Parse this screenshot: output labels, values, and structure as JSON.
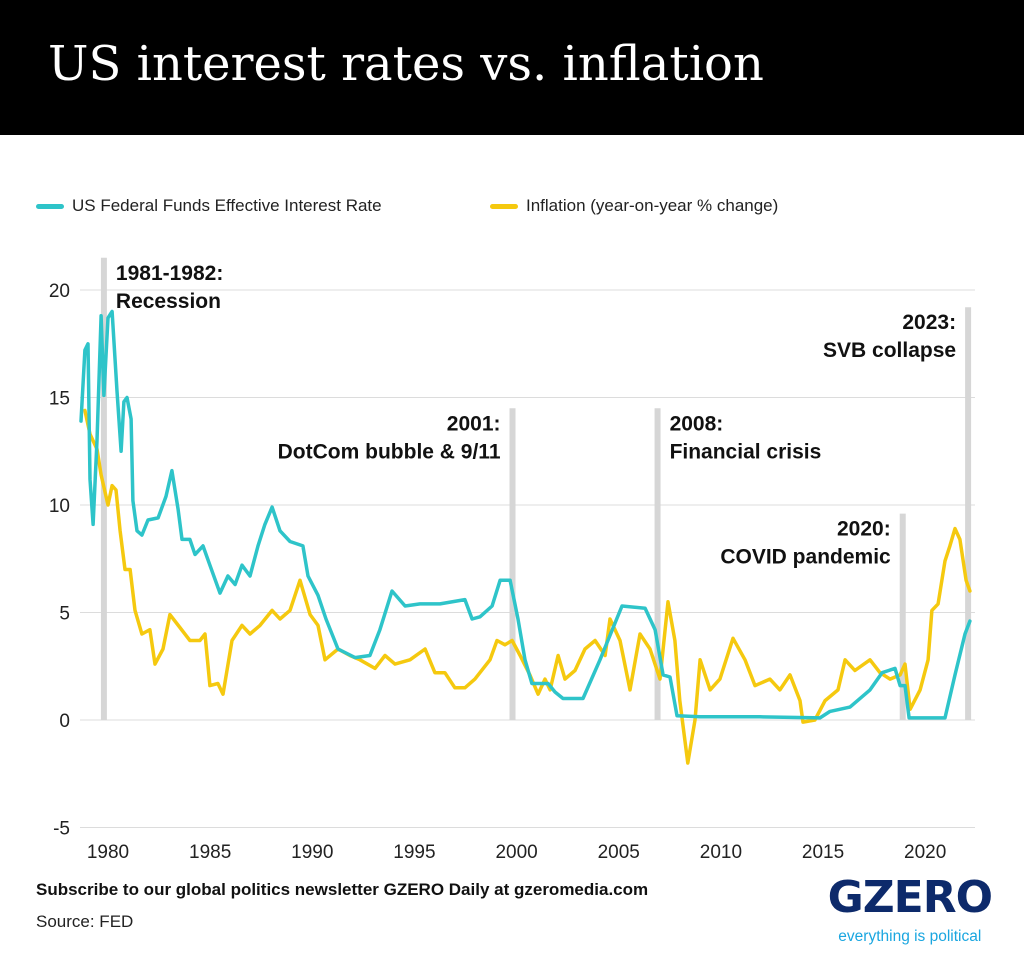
{
  "title": "US interest rates vs. inflation",
  "footer": {
    "subscribe": "Subscribe to our global politics newsletter GZERO Daily at gzeromedia.com",
    "source": "Source: FED"
  },
  "logo": {
    "word": "GZERO",
    "tagline": "everything is political",
    "colors": {
      "word": "#0d2a6b",
      "tagline": "#1aa6e0"
    }
  },
  "chart_data": {
    "type": "line",
    "title": "US interest rates vs. inflation",
    "xlabel": "",
    "ylabel": "",
    "xlim": [
      1978.6,
      2022.4
    ],
    "ylim": [
      -5,
      20
    ],
    "xticks": [
      1980,
      1985,
      1990,
      1995,
      2000,
      2005,
      2010,
      2015,
      2020
    ],
    "yticks": [
      -5,
      0,
      5,
      10,
      15,
      20
    ],
    "grid": "horizontal",
    "legend": "top-left",
    "series": [
      {
        "name": "US Federal Funds Effective Interest Rate",
        "color": "#2ec4c9",
        "x": [
          1978.68,
          1978.87,
          1979.02,
          1979.12,
          1979.27,
          1979.46,
          1979.66,
          1979.8,
          1980.0,
          1980.2,
          1980.44,
          1980.64,
          1980.78,
          1980.93,
          1981.13,
          1981.22,
          1981.42,
          1981.66,
          1981.96,
          1982.45,
          1982.84,
          1983.13,
          1983.43,
          1983.62,
          1984.01,
          1984.26,
          1984.65,
          1984.99,
          1985.48,
          1985.87,
          1986.22,
          1986.56,
          1986.95,
          1987.34,
          1987.68,
          1988.03,
          1988.42,
          1988.91,
          1989.54,
          1989.79,
          1990.28,
          1990.67,
          1991.26,
          1992.09,
          1992.82,
          1993.31,
          1993.9,
          1994.54,
          1995.27,
          1996.25,
          1997.47,
          1997.82,
          1998.21,
          1998.8,
          1999.19,
          1999.68,
          2000.07,
          2000.41,
          2000.75,
          2001.54,
          2001.88,
          2002.27,
          2003.25,
          2004.08,
          2005.16,
          2006.29,
          2006.78,
          2007.17,
          2007.51,
          2007.85,
          2008.98,
          2011.91,
          2014.85,
          2015.34,
          2016.32,
          2017.3,
          2017.89,
          2018.52,
          2018.77,
          2019.01,
          2019.21,
          2020.97,
          2021.46,
          2021.95,
          2022.19
        ],
        "y": [
          13.9,
          17.2,
          17.5,
          11.2,
          9.1,
          13,
          18.8,
          15.1,
          18.7,
          19,
          15.3,
          12.5,
          14.8,
          15,
          14,
          10.2,
          8.8,
          8.6,
          9.3,
          9.4,
          10.4,
          11.6,
          9.8,
          8.4,
          8.4,
          7.7,
          8.1,
          7.2,
          5.9,
          6.7,
          6.3,
          7.2,
          6.7,
          8.1,
          9.1,
          9.9,
          8.8,
          8.3,
          8.1,
          6.7,
          5.8,
          4.7,
          3.3,
          2.9,
          3.0,
          4.2,
          6.0,
          5.3,
          5.4,
          5.4,
          5.6,
          4.7,
          4.8,
          5.3,
          6.5,
          6.5,
          4.7,
          2.8,
          1.7,
          1.7,
          1.3,
          1.0,
          1.0,
          2.8,
          5.3,
          5.2,
          4.2,
          2.1,
          2.0,
          0.2,
          0.15,
          0.15,
          0.1,
          0.4,
          0.6,
          1.4,
          2.2,
          2.4,
          1.6,
          1.6,
          0.1,
          0.1,
          2.1,
          4.0,
          4.6
        ]
      },
      {
        "name": "Inflation (year-on-year % change)",
        "color": "#f5c90f",
        "x": [
          1978.87,
          1979.12,
          1979.46,
          1979.66,
          1980.0,
          1980.2,
          1980.39,
          1980.59,
          1980.83,
          1981.08,
          1981.32,
          1981.66,
          1982.05,
          1982.3,
          1982.69,
          1983.03,
          1983.52,
          1984.01,
          1984.5,
          1984.75,
          1984.99,
          1985.38,
          1985.63,
          1986.07,
          1986.56,
          1986.95,
          1987.44,
          1988.03,
          1988.42,
          1988.91,
          1989.4,
          1989.89,
          1990.28,
          1990.62,
          1991.26,
          1991.84,
          1992.33,
          1993.07,
          1993.56,
          1994.05,
          1994.78,
          1995.52,
          1996.0,
          1996.49,
          1996.98,
          1997.47,
          1997.96,
          1998.7,
          1999.04,
          1999.43,
          1999.78,
          2000.17,
          2000.65,
          2001.05,
          2001.39,
          2001.64,
          2002.03,
          2002.37,
          2002.86,
          2003.35,
          2003.84,
          2004.33,
          2004.57,
          2005.06,
          2005.55,
          2006.04,
          2006.53,
          2007.02,
          2007.41,
          2007.75,
          2007.99,
          2008.38,
          2008.73,
          2008.98,
          2009.47,
          2009.95,
          2010.59,
          2011.18,
          2011.67,
          2012.4,
          2012.89,
          2013.38,
          2013.87,
          2014.02,
          2014.6,
          2015.1,
          2015.73,
          2016.08,
          2016.56,
          2017.3,
          2017.79,
          2018.28,
          2018.77,
          2019.01,
          2019.26,
          2019.75,
          2020.14,
          2020.33,
          2020.63,
          2020.97,
          2021.21,
          2021.46,
          2021.7,
          2022.0,
          2022.19
        ],
        "y": [
          14.4,
          13.3,
          12.6,
          11.4,
          10,
          10.9,
          10.7,
          8.8,
          7.0,
          7,
          5.1,
          4,
          4.2,
          2.6,
          3.3,
          4.9,
          4.3,
          3.7,
          3.7,
          4,
          1.6,
          1.7,
          1.2,
          3.7,
          4.4,
          4,
          4.4,
          5.1,
          4.7,
          5.1,
          6.5,
          4.9,
          4.4,
          2.8,
          3.3,
          3.0,
          2.8,
          2.4,
          3.0,
          2.6,
          2.8,
          3.3,
          2.2,
          2.2,
          1.5,
          1.5,
          1.9,
          2.8,
          3.7,
          3.5,
          3.7,
          3.0,
          2.1,
          1.2,
          1.9,
          1.4,
          3.0,
          1.9,
          2.3,
          3.3,
          3.7,
          3.0,
          4.7,
          3.7,
          1.4,
          4,
          3.3,
          1.9,
          5.5,
          3.7,
          0.9,
          -2.0,
          0,
          2.8,
          1.4,
          1.9,
          3.8,
          2.8,
          1.6,
          1.9,
          1.4,
          2.1,
          0.9,
          -0.1,
          0,
          0.9,
          1.4,
          2.8,
          2.3,
          2.8,
          2.2,
          1.9,
          2.1,
          2.6,
          0.5,
          1.4,
          2.8,
          5.1,
          5.4,
          7.4,
          8.1,
          8.9,
          8.4,
          6.5,
          6.0
        ]
      }
    ],
    "annotations": [
      {
        "x": 1979.8,
        "top": 21.5,
        "line1": "1981-1982:",
        "line2": "Recession",
        "align": "left"
      },
      {
        "x": 1999.8,
        "top": 14.5,
        "line1": "2001:",
        "line2": "DotCom bubble & 9/11",
        "align": "right"
      },
      {
        "x": 2006.9,
        "top": 14.5,
        "line1": "2008:",
        "line2": "Financial crisis",
        "align": "left"
      },
      {
        "x": 2018.9,
        "top": 9.6,
        "line1": "2020:",
        "line2": "COVID pandemic",
        "align": "right"
      },
      {
        "x": 2022.1,
        "top": 19.2,
        "line1": "2023:",
        "line2": "SVB collapse",
        "align": "right"
      }
    ]
  }
}
